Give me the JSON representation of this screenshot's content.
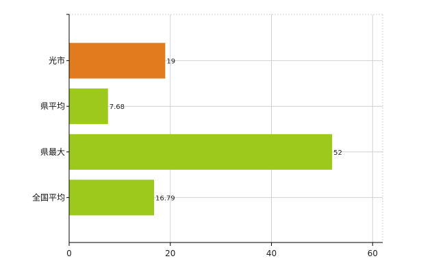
{
  "colors": {
    "highlight": "#e07b1e",
    "default": "#9dc91c",
    "grid": "#d0d0d0",
    "axis": "#000000"
  },
  "chart_data": {
    "type": "bar",
    "orientation": "horizontal",
    "categories": [
      "光市",
      "県平均",
      "県最大",
      "全国平均"
    ],
    "values": [
      19,
      7.68,
      52,
      16.79
    ],
    "value_labels": [
      "19",
      "7.68",
      "52",
      "16.79"
    ],
    "highlight_index": 0,
    "xlim": [
      0,
      62
    ],
    "xticks": [
      0,
      20,
      40,
      60
    ],
    "xtick_labels": [
      "0",
      "20",
      "40",
      "60"
    ],
    "grid": true,
    "legend": "none"
  }
}
